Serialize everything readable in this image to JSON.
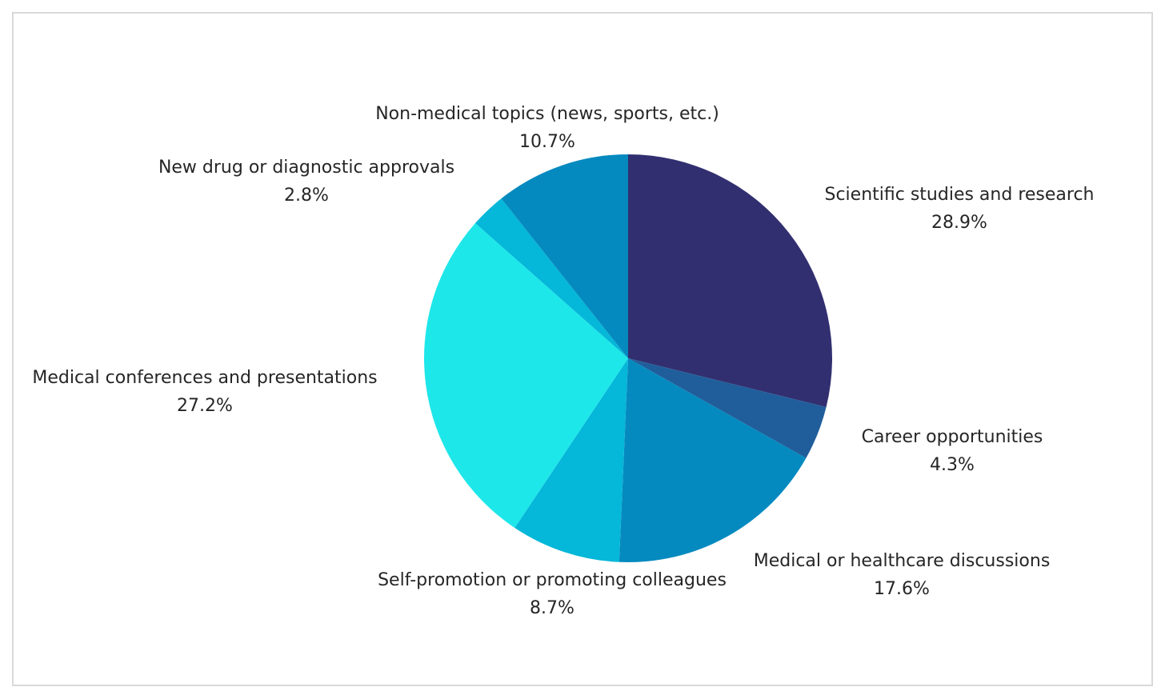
{
  "chart_data": {
    "type": "pie",
    "slices": [
      {
        "label": "Scientific studies and research",
        "value": 28.9,
        "value_label": "28.9%",
        "color": "#322f70"
      },
      {
        "label": "Career opportunities",
        "value": 4.3,
        "value_label": "4.3%",
        "color": "#205e9b"
      },
      {
        "label": "Medical or healthcare discussions",
        "value": 17.6,
        "value_label": "17.6%",
        "color": "#058abf"
      },
      {
        "label": "Self-promotion or promoting colleagues",
        "value": 8.7,
        "value_label": "8.7%",
        "color": "#05b7d8"
      },
      {
        "label": "Medical conferences and presentations",
        "value": 27.2,
        "value_label": "27.2%",
        "color": "#1ee7ea"
      },
      {
        "label": "New drug or diagnostic approvals",
        "value": 2.8,
        "value_label": "2.8%",
        "color": "#05b7d8"
      },
      {
        "label": "Non-medical topics (news, sports, etc.)",
        "value": 10.7,
        "value_label": "10.7%",
        "color": "#058abf"
      }
    ],
    "start_angle": "12 o'clock",
    "direction": "clockwise",
    "legend": "none",
    "data_labels": "outside"
  }
}
